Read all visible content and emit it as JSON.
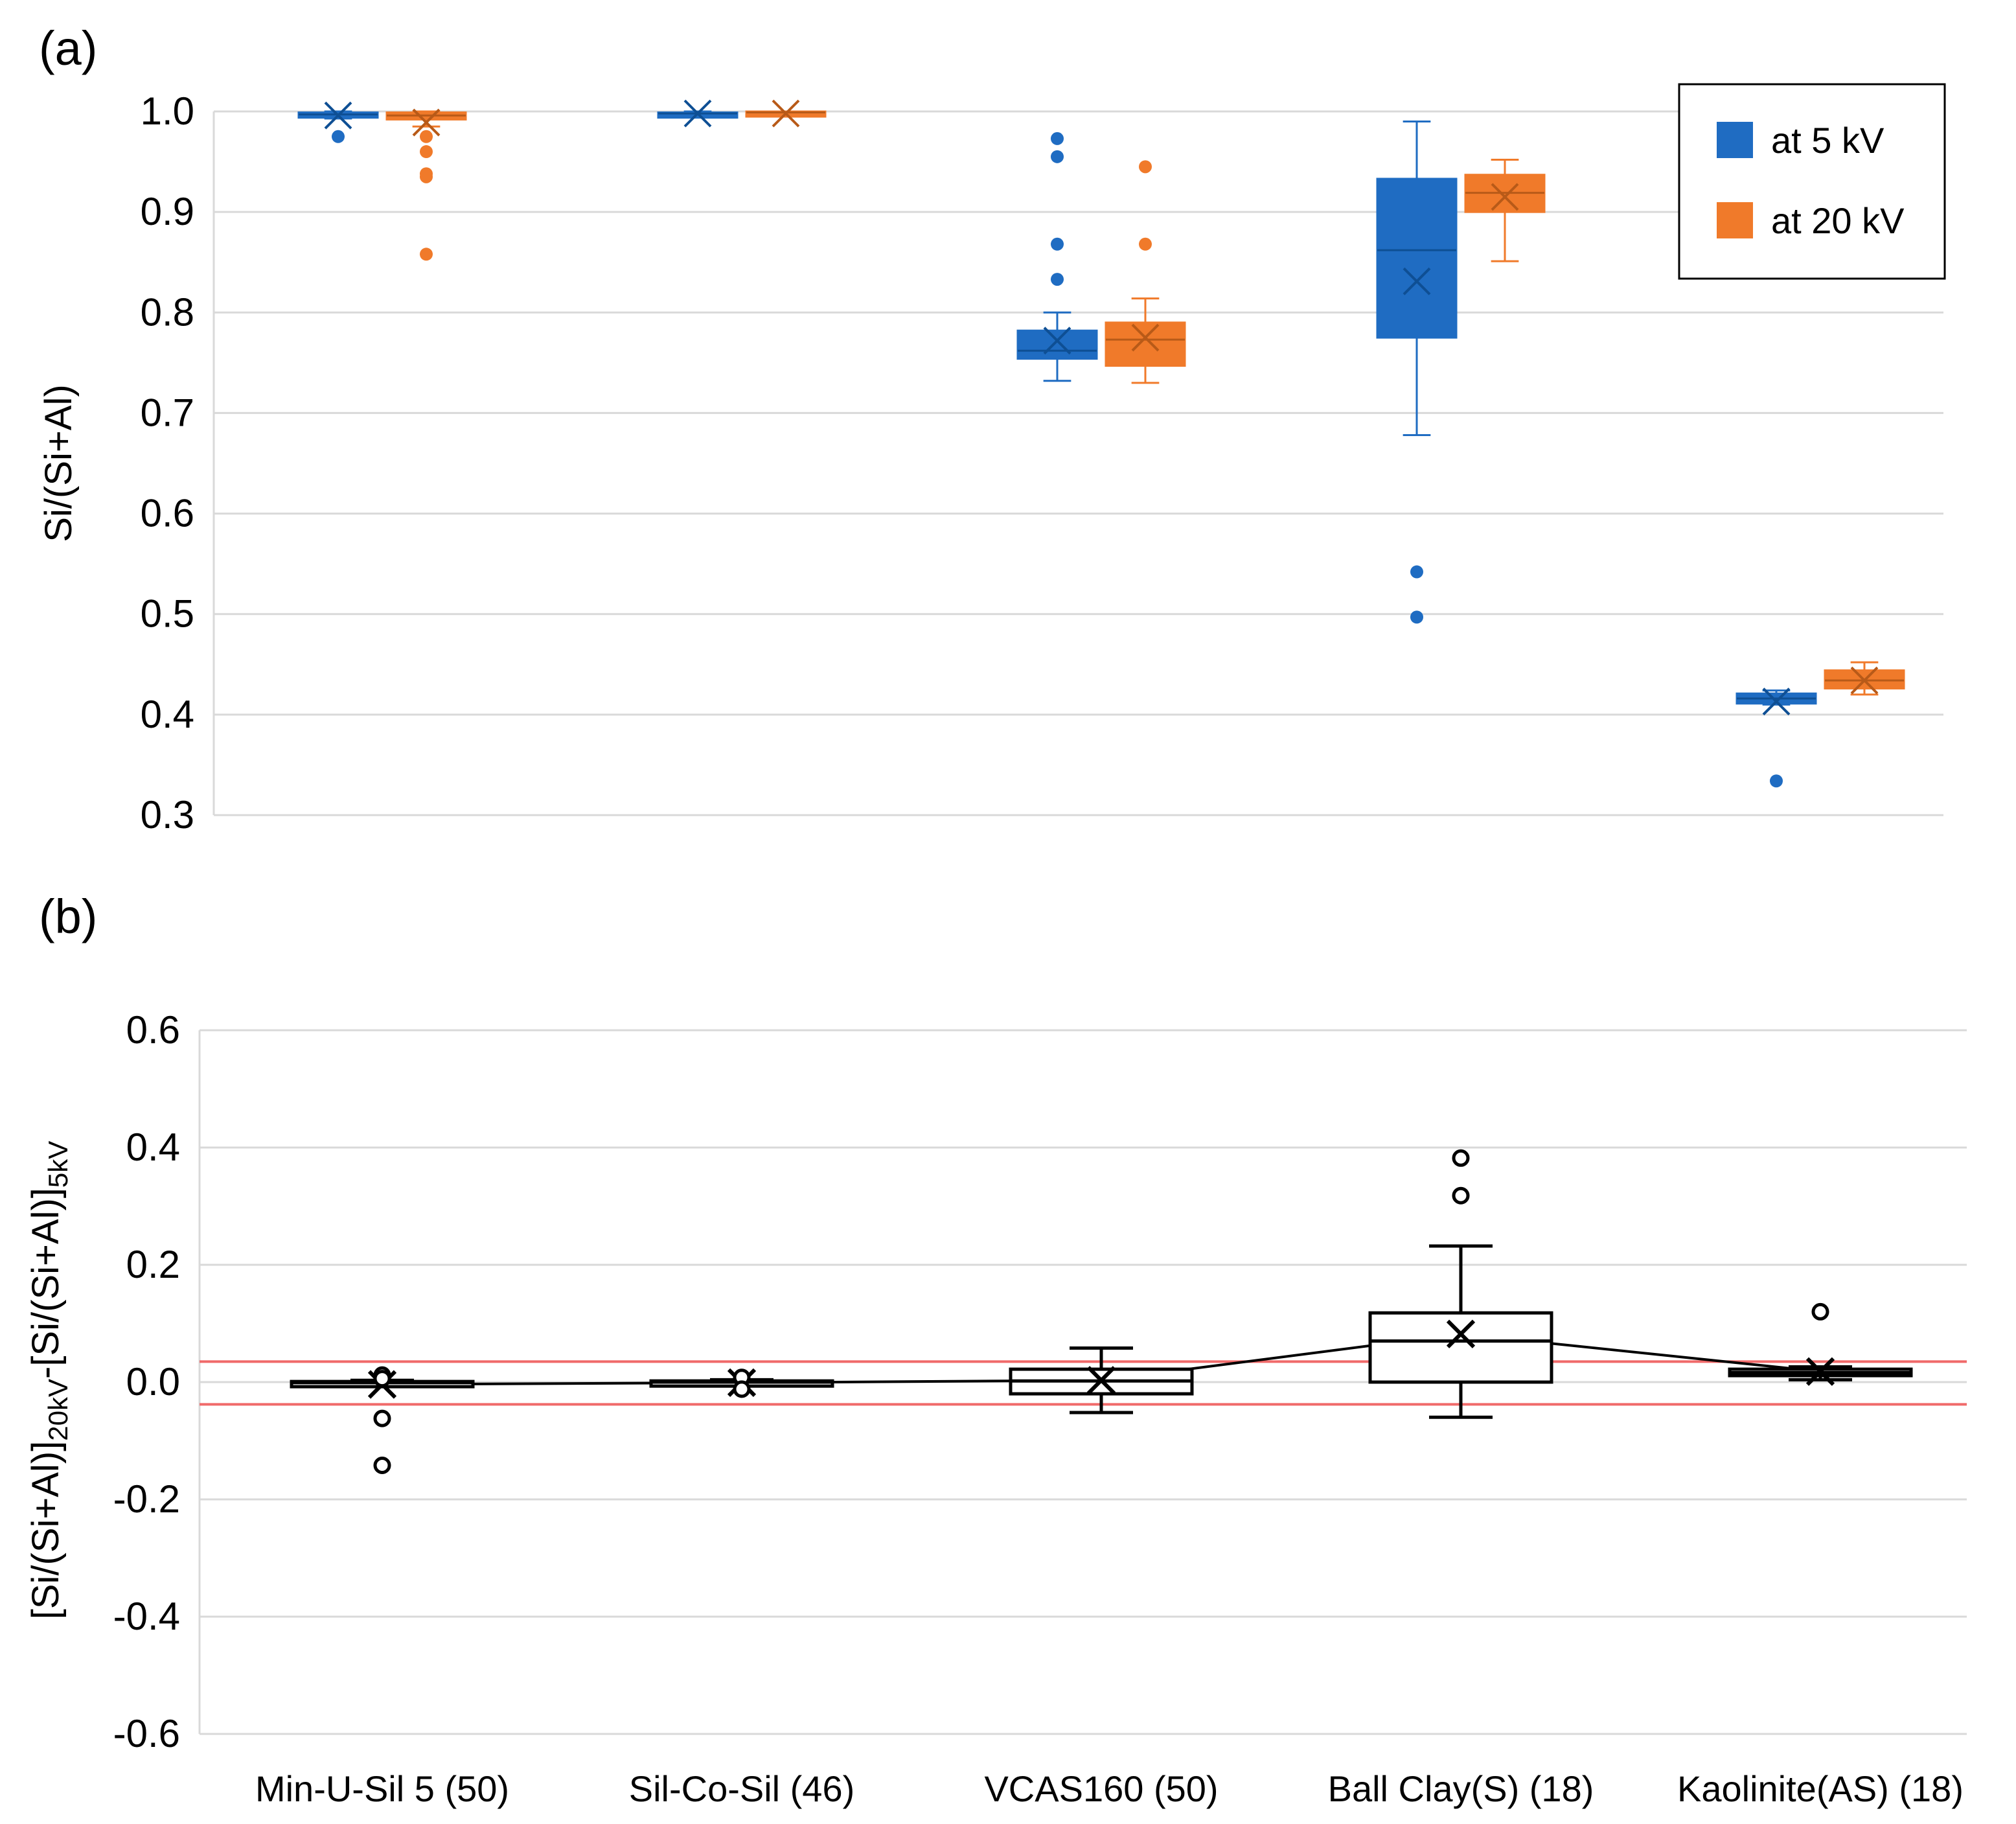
{
  "chart_data": [
    {
      "panel_label": "(a)",
      "type": "boxplot",
      "ylabel": "Si/(Si+Al)",
      "ylim": [
        0.3,
        1.0
      ],
      "yticks": [
        "0.3",
        "0.4",
        "0.5",
        "0.6",
        "0.7",
        "0.8",
        "0.9",
        "1.0"
      ],
      "categories": [
        "Min-U-Sil 5 (50)",
        "Sil-Co-Sil (46)",
        "VCAS160 (50)",
        "Ball Clay(S) (18)",
        "Kaolinite(AS) (18)"
      ],
      "legend": {
        "position": "top-right",
        "entries": [
          "at 5 kV",
          "at 20 kV"
        ]
      },
      "series": [
        {
          "name": "at 5 kV",
          "color": "#1f6cc2",
          "boxes": [
            {
              "whisker_low": 0.993,
              "q1": 0.995,
              "median": 0.997,
              "q3": 0.999,
              "whisker_high": 1.0,
              "mean": 0.996,
              "outliers": [
                0.975
              ]
            },
            {
              "whisker_low": 0.996,
              "q1": 0.997,
              "median": 0.998,
              "q3": 0.999,
              "whisker_high": 1.0,
              "mean": 0.998,
              "outliers": []
            },
            {
              "whisker_low": 0.732,
              "q1": 0.754,
              "median": 0.762,
              "q3": 0.782,
              "whisker_high": 0.8,
              "mean": 0.772,
              "outliers": [
                0.833,
                0.868,
                0.955,
                0.973
              ]
            },
            {
              "whisker_low": 0.678,
              "q1": 0.775,
              "median": 0.862,
              "q3": 0.933,
              "whisker_high": 0.99,
              "mean": 0.831,
              "outliers": [
                0.542,
                0.497
              ]
            },
            {
              "whisker_low": 0.41,
              "q1": 0.411,
              "median": 0.416,
              "q3": 0.421,
              "whisker_high": 0.424,
              "mean": 0.413,
              "outliers": [
                0.334
              ]
            }
          ]
        },
        {
          "name": "at 20 kV",
          "color": "#f07a2a",
          "boxes": [
            {
              "whisker_low": 0.985,
              "q1": 0.992,
              "median": 0.996,
              "q3": 0.999,
              "whisker_high": 1.0,
              "mean": 0.989,
              "outliers": [
                0.975,
                0.96,
                0.938,
                0.935,
                0.858
              ]
            },
            {
              "whisker_low": 0.997,
              "q1": 0.998,
              "median": 0.999,
              "q3": 1.0,
              "whisker_high": 1.0,
              "mean": 0.998,
              "outliers": []
            },
            {
              "whisker_low": 0.73,
              "q1": 0.747,
              "median": 0.773,
              "q3": 0.79,
              "whisker_high": 0.814,
              "mean": 0.775,
              "outliers": [
                0.868,
                0.945
              ]
            },
            {
              "whisker_low": 0.851,
              "q1": 0.9,
              "median": 0.919,
              "q3": 0.937,
              "whisker_high": 0.952,
              "mean": 0.915,
              "outliers": []
            },
            {
              "whisker_low": 0.42,
              "q1": 0.426,
              "median": 0.434,
              "q3": 0.444,
              "whisker_high": 0.452,
              "mean": 0.434,
              "outliers": []
            }
          ]
        }
      ]
    },
    {
      "panel_label": "(b)",
      "type": "boxplot",
      "ylabel": "[Si/(Si+Al)]20kV-[Si/(Si+Al)]5kV",
      "ylabel_main_1": "[Si/(Si+Al)]",
      "ylabel_sub_1": "20kV",
      "ylabel_main_2": "-[Si/(Si+Al)]",
      "ylabel_sub_2": "5kV",
      "ylim": [
        -0.6,
        0.6
      ],
      "yticks": [
        "-0.6",
        "-0.4",
        "-0.2",
        "0.0",
        "0.2",
        "0.4",
        "0.6"
      ],
      "categories": [
        "Min-U-Sil 5 (50)",
        "Sil-Co-Sil (46)",
        "VCAS160 (50)",
        "Ball Clay(S) (18)",
        "Kaolinite(AS) (18)"
      ],
      "reference_lines": [
        0.035,
        -0.038
      ],
      "reference_color": "#f06a6a",
      "mean_line": true,
      "boxes": [
        {
          "whisker_low": -0.006,
          "q1": -0.004,
          "median": -0.001,
          "q3": 0.001,
          "whisker_high": 0.003,
          "mean": -0.004,
          "outliers": [
            0.012,
            0.006,
            -0.062,
            -0.142
          ]
        },
        {
          "whisker_low": -0.004,
          "q1": -0.002,
          "median": 0.0,
          "q3": 0.002,
          "whisker_high": 0.004,
          "mean": -0.001,
          "outliers": [
            0.008,
            -0.012
          ]
        },
        {
          "whisker_low": -0.052,
          "q1": -0.02,
          "median": 0.002,
          "q3": 0.022,
          "whisker_high": 0.058,
          "mean": 0.003,
          "outliers": []
        },
        {
          "whisker_low": -0.06,
          "q1": 0.0,
          "median": 0.07,
          "q3": 0.118,
          "whisker_high": 0.232,
          "mean": 0.082,
          "outliers": [
            0.382,
            0.318
          ]
        },
        {
          "whisker_low": 0.004,
          "q1": 0.011,
          "median": 0.016,
          "q3": 0.022,
          "whisker_high": 0.026,
          "mean": 0.018,
          "outliers": [
            0.12
          ]
        }
      ]
    }
  ]
}
